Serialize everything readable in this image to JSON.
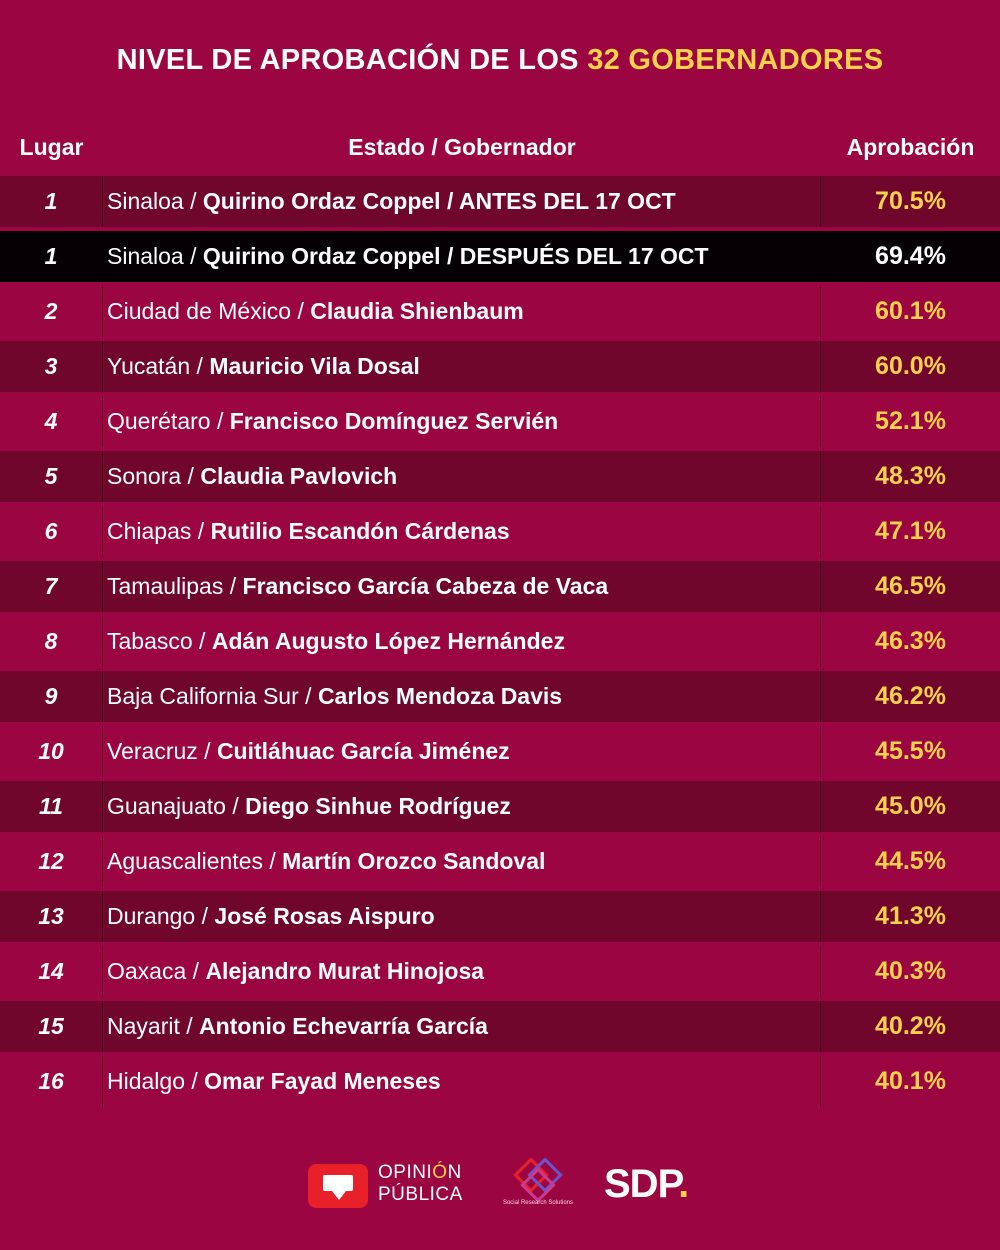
{
  "title": {
    "part1": "NIVEL DE APROBACIÓN DE LOS ",
    "part2": "32 GOBERNADORES"
  },
  "colors": {
    "background": "#9b0541",
    "alt_row": "#71062d",
    "highlight_row": "#050003",
    "accent": "#ffd24a"
  },
  "headers": {
    "rank": "Lugar",
    "name": "Estado / Gobernador",
    "approval": "Aprobación"
  },
  "rows": [
    {
      "rank": "1",
      "state": "Sinaloa",
      "sep": " / ",
      "governor": "Quirino Ordaz Coppel / ANTES DEL 17 OCT",
      "approval": "70.5%",
      "style": "alt"
    },
    {
      "rank": "1",
      "state": "Sinaloa",
      "sep": " / ",
      "governor": "Quirino Ordaz Coppel / DESPUÉS DEL 17 OCT",
      "approval": "69.4%",
      "style": "black"
    },
    {
      "rank": "2",
      "state": "Ciudad de México",
      "sep": " / ",
      "governor": "Claudia Shienbaum",
      "approval": "60.1%",
      "style": "plain"
    },
    {
      "rank": "3",
      "state": "Yucatán",
      "sep": " / ",
      "governor": "Mauricio Vila Dosal",
      "approval": "60.0%",
      "style": "alt"
    },
    {
      "rank": "4",
      "state": "Querétaro",
      "sep": " / ",
      "governor": "Francisco Domínguez Servién",
      "approval": "52.1%",
      "style": "plain"
    },
    {
      "rank": "5",
      "state": "Sonora",
      "sep": " / ",
      "governor": "Claudia Pavlovich",
      "approval": "48.3%",
      "style": "alt"
    },
    {
      "rank": "6",
      "state": "Chiapas",
      "sep": " / ",
      "governor": "Rutilio Escandón Cárdenas",
      "approval": "47.1%",
      "style": "plain"
    },
    {
      "rank": "7",
      "state": "Tamaulipas",
      "sep": " / ",
      "governor": "Francisco García Cabeza de Vaca",
      "approval": "46.5%",
      "style": "alt"
    },
    {
      "rank": "8",
      "state": "Tabasco",
      "sep": " / ",
      "governor": "Adán Augusto López Hernández",
      "approval": "46.3%",
      "style": "plain"
    },
    {
      "rank": "9",
      "state": "Baja California Sur",
      "sep": " / ",
      "governor": "Carlos Mendoza Davis",
      "approval": "46.2%",
      "style": "alt"
    },
    {
      "rank": "10",
      "state": "Veracruz",
      "sep": " / ",
      "governor": "Cuitláhuac García Jiménez",
      "approval": "45.5%",
      "style": "plain"
    },
    {
      "rank": "11",
      "state": "Guanajuato",
      "sep": " / ",
      "governor": "Diego Sinhue Rodríguez",
      "approval": "45.0%",
      "style": "alt"
    },
    {
      "rank": "12",
      "state": "Aguascalientes",
      "sep": " / ",
      "governor": "Martín Orozco Sandoval",
      "approval": "44.5%",
      "style": "plain"
    },
    {
      "rank": "13",
      "state": "Durango",
      "sep": " / ",
      "governor": "José Rosas Aispuro",
      "approval": "41.3%",
      "style": "alt"
    },
    {
      "rank": "14",
      "state": "Oaxaca",
      "sep": " / ",
      "governor": "Alejandro Murat Hinojosa",
      "approval": "40.3%",
      "style": "plain"
    },
    {
      "rank": "15",
      "state": "Nayarit",
      "sep": " / ",
      "governor": "Antonio Echevarría García",
      "approval": "40.2%",
      "style": "alt"
    },
    {
      "rank": "16",
      "state": "Hidalgo",
      "sep": " / ",
      "governor": "Omar Fayad Meneses",
      "approval": "40.1%",
      "style": "plain"
    }
  ],
  "footer": {
    "opinion_publica": {
      "line1_a": "OPINI",
      "line1_b": "Ó",
      "line1_c": "N",
      "line2": "PÚBLICA",
      "icon": "speech-bubble-icon"
    },
    "srs": {
      "caption": "Social Research Solutions",
      "icon": "srs-knot-icon"
    },
    "sdp": {
      "text": "SDP",
      "dot": "."
    }
  }
}
